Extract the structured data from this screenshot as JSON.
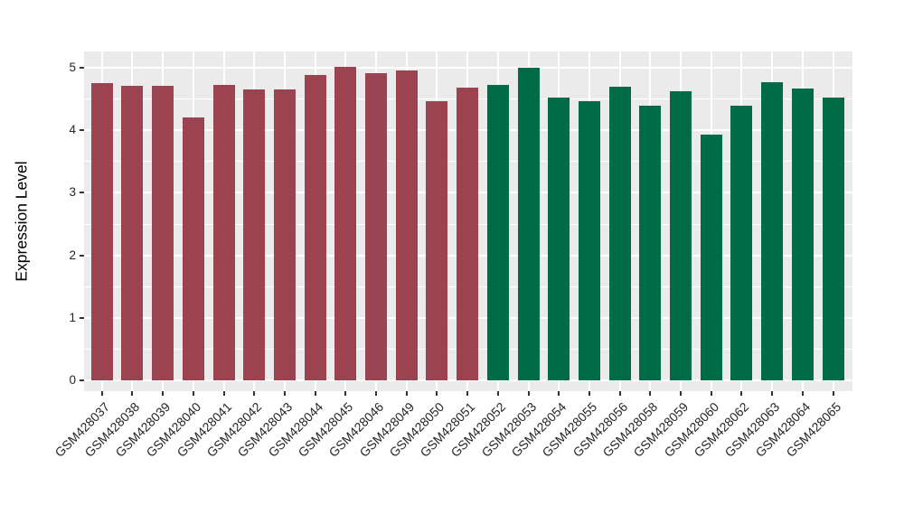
{
  "chart_data": {
    "type": "bar",
    "title": "",
    "xlabel": "",
    "ylabel": "Expression Level",
    "categories": [
      "GSM428037",
      "GSM428038",
      "GSM428039",
      "GSM428040",
      "GSM428041",
      "GSM428042",
      "GSM428043",
      "GSM428044",
      "GSM428045",
      "GSM428046",
      "GSM428049",
      "GSM428050",
      "GSM428051",
      "GSM428052",
      "GSM428053",
      "GSM428054",
      "GSM428055",
      "GSM428056",
      "GSM428058",
      "GSM428059",
      "GSM428060",
      "GSM428062",
      "GSM428063",
      "GSM428064",
      "GSM428065"
    ],
    "values": [
      4.75,
      4.71,
      4.71,
      4.21,
      4.72,
      4.66,
      4.66,
      4.89,
      5.02,
      4.91,
      4.96,
      4.47,
      4.68,
      4.73,
      5.0,
      4.52,
      4.46,
      4.69,
      4.39,
      4.62,
      3.93,
      4.39,
      4.77,
      4.67,
      4.53
    ],
    "color_groups": [
      {
        "color": "#9C4351",
        "from_index": 0,
        "to_index": 12
      },
      {
        "color": "#006B47",
        "from_index": 13,
        "to_index": 24
      }
    ],
    "yticks": [
      0,
      1,
      2,
      3,
      4,
      5
    ],
    "ylim": [
      0,
      5.27
    ],
    "x_label_rotation_deg": 45,
    "legend": "none",
    "grid": {
      "on": true,
      "major_color": "#FFFFFF",
      "minor_color": "#FFFFFF"
    }
  },
  "colors": {
    "page_bg": "#FFFFFF",
    "panel_bg": "#EBEBEB",
    "gridline": "#FFFFFF",
    "tick_mark": "#333333",
    "axis_text": "#262626",
    "axis_title_text": "#000000",
    "bar_red": "#9C4351",
    "bar_green": "#006B47"
  }
}
